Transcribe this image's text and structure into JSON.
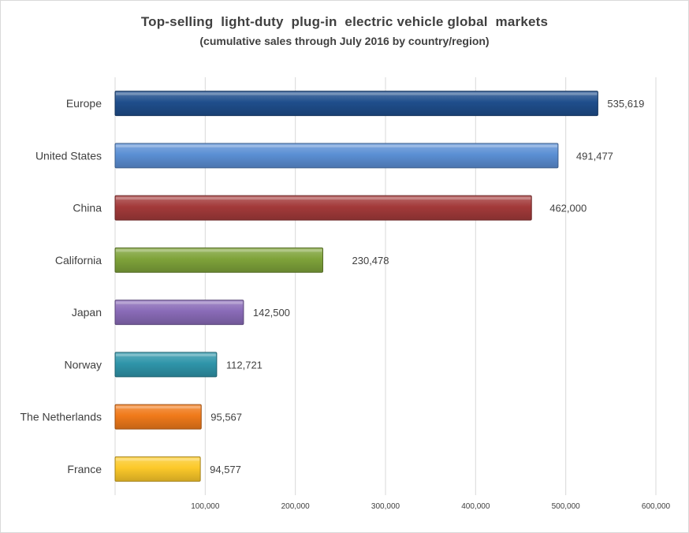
{
  "chart_data": {
    "type": "bar",
    "orientation": "horizontal",
    "title": "Top-selling  light-duty  plug-in  electric vehicle global  markets",
    "subtitle": "(cumulative sales through July 2016 by country/region)",
    "xlabel": "",
    "ylabel": "",
    "xlim": [
      0,
      600000
    ],
    "grid": true,
    "legend": "none",
    "x_ticks": [
      {
        "value": 100000,
        "label": "100,000"
      },
      {
        "value": 200000,
        "label": "200,000"
      },
      {
        "value": 300000,
        "label": "300,000"
      },
      {
        "value": 400000,
        "label": "400,000"
      },
      {
        "value": 500000,
        "label": "500,000"
      },
      {
        "value": 600000,
        "label": "600,000"
      }
    ],
    "categories": [
      "Europe",
      "United States",
      "China",
      "California",
      "Japan",
      "Norway",
      "The Netherlands",
      "France"
    ],
    "values": [
      535619,
      491477,
      462000,
      230478,
      142500,
      112721,
      95567,
      94577
    ],
    "value_labels": [
      "535,619",
      "491,477",
      "462,000",
      "230,478",
      "142,500",
      "112,721",
      "95,567",
      "94,577"
    ],
    "colors": [
      "#1f4e8c",
      "#5b8fd4",
      "#a33a3a",
      "#7fa33a",
      "#8a6bb8",
      "#2f95aa",
      "#f07a1a",
      "#fcc92a"
    ]
  }
}
